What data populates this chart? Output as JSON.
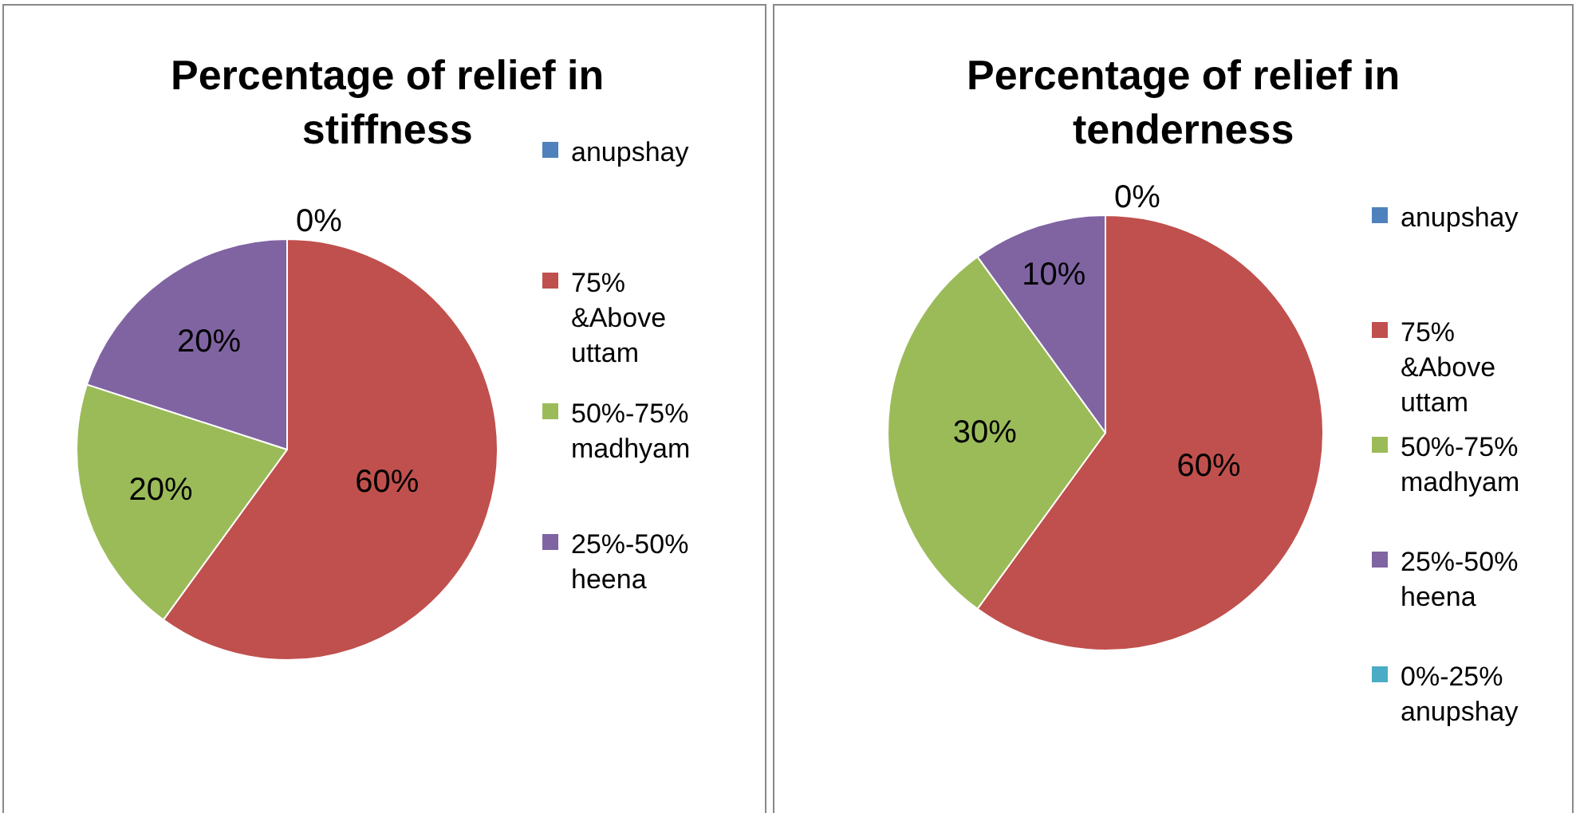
{
  "chart_data": [
    {
      "type": "pie",
      "title": "Percentage of relief in stiffness",
      "categories": [
        "anupshay",
        "75% &Above uttam",
        "50%-75% madhyam",
        "25%-50% heena"
      ],
      "values": [
        0,
        60,
        20,
        20
      ],
      "colors": [
        "#4f81bd",
        "#c0504d",
        "#9bbb59",
        "#8064a2"
      ],
      "value_labels": [
        "0%",
        "60%",
        "20%",
        "20%"
      ],
      "legend": "right"
    },
    {
      "type": "pie",
      "title": "Percentage of relief in tenderness",
      "categories": [
        "anupshay",
        "75% &Above uttam",
        "50%-75% madhyam",
        "25%-50% heena",
        "0%-25% anupshay"
      ],
      "values": [
        0,
        60,
        30,
        10,
        0
      ],
      "colors": [
        "#4f81bd",
        "#c0504d",
        "#9bbb59",
        "#8064a2",
        "#4bacc6"
      ],
      "value_labels": [
        "0%",
        "60%",
        "30%",
        "10%",
        null
      ],
      "legend": "right"
    }
  ]
}
